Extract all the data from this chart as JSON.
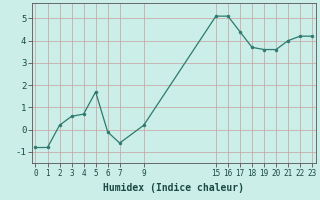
{
  "x": [
    0,
    1,
    2,
    3,
    4,
    5,
    6,
    7,
    9,
    15,
    16,
    17,
    18,
    19,
    20,
    21,
    22,
    23
  ],
  "y": [
    -0.8,
    -0.8,
    0.2,
    0.6,
    0.7,
    1.7,
    -0.1,
    -0.6,
    0.2,
    5.1,
    5.1,
    4.4,
    3.7,
    3.6,
    3.6,
    4.0,
    4.2,
    4.2
  ],
  "xticks": [
    0,
    1,
    2,
    3,
    4,
    5,
    6,
    7,
    9,
    15,
    16,
    17,
    18,
    19,
    20,
    21,
    22,
    23
  ],
  "xtick_labels": [
    "0",
    "1",
    "2",
    "3",
    "4",
    "5",
    "6",
    "7",
    "9",
    "15",
    "16",
    "17",
    "18",
    "19",
    "20",
    "21",
    "22",
    "23"
  ],
  "yticks": [
    -1,
    0,
    1,
    2,
    3,
    4,
    5
  ],
  "ylim": [
    -1.5,
    5.7
  ],
  "xlim": [
    -0.3,
    23.3
  ],
  "xlabel": "Humidex (Indice chaleur)",
  "line_color": "#2d7a6e",
  "marker": "o",
  "marker_size": 2.0,
  "linewidth": 0.9,
  "background_color": "#cceee8",
  "plot_bg_color": "#cceee8",
  "grid_color": "#c8a0a0",
  "grid_linewidth": 0.5
}
